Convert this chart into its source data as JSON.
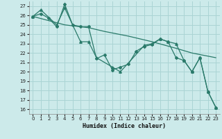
{
  "background_color": "#cceaea",
  "grid_color": "#aad4d4",
  "line_color": "#2a7a6a",
  "xlabel": "Humidex (Indice chaleur)",
  "xlim": [
    -0.5,
    23.5
  ],
  "ylim": [
    15.5,
    27.5
  ],
  "yticks": [
    16,
    17,
    18,
    19,
    20,
    21,
    22,
    23,
    24,
    25,
    26,
    27
  ],
  "xticks": [
    0,
    1,
    2,
    3,
    4,
    5,
    6,
    7,
    8,
    9,
    10,
    11,
    12,
    13,
    14,
    15,
    16,
    17,
    18,
    19,
    20,
    21,
    22,
    23
  ],
  "series1_x": [
    0,
    1,
    2,
    3,
    4,
    5,
    6,
    7,
    8,
    9,
    10,
    11,
    12,
    13,
    14,
    15,
    16,
    17,
    18,
    19,
    20,
    21,
    22,
    23
  ],
  "series1_y": [
    25.9,
    26.2,
    25.7,
    24.8,
    27.2,
    25.0,
    24.8,
    24.8,
    21.4,
    21.8,
    20.2,
    20.5,
    20.8,
    22.2,
    22.7,
    22.9,
    23.5,
    23.2,
    21.5,
    21.2,
    20.0,
    21.5,
    17.9,
    16.2
  ],
  "series2_x": [
    0,
    1,
    3,
    4,
    6,
    7,
    8,
    10,
    11,
    14,
    15,
    16,
    17,
    18,
    19,
    20,
    21,
    22,
    23
  ],
  "series2_y": [
    25.9,
    26.6,
    25.0,
    26.8,
    23.2,
    23.2,
    21.5,
    20.5,
    20.0,
    22.8,
    23.0,
    23.5,
    23.2,
    23.0,
    21.2,
    20.0,
    21.5,
    17.9,
    16.2
  ],
  "series3_x": [
    0,
    4,
    7,
    9,
    12,
    15,
    18,
    20,
    23
  ],
  "series3_y": [
    25.9,
    25.0,
    24.7,
    24.3,
    23.8,
    23.2,
    22.5,
    22.0,
    21.5
  ]
}
